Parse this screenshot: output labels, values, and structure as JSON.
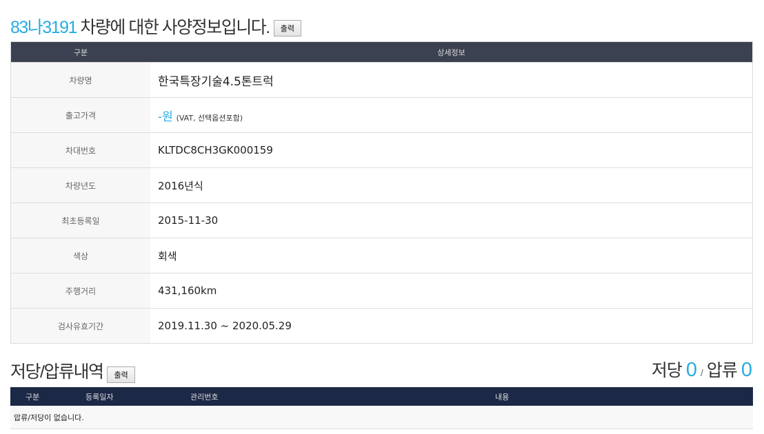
{
  "header": {
    "plate": "83나3191",
    "title_rest": " 차량에 대한 사양정보입니다.",
    "print_label": "출력"
  },
  "spec_table": {
    "columns": [
      "구분",
      "상세정보"
    ],
    "rows": [
      {
        "label": "차량명",
        "value": "한국특장기술4.5톤트럭"
      },
      {
        "label": "출고가격",
        "value": "-원",
        "note": "(VAT, 선택옵션포함)"
      },
      {
        "label": "차대번호",
        "value": "KLTDC8CH3GK000159"
      },
      {
        "label": "차량년도",
        "value": "2016년식"
      },
      {
        "label": "최초등록일",
        "value": "2015-11-30"
      },
      {
        "label": "색상",
        "value": "회색"
      },
      {
        "label": "주행거리",
        "value": "431,160km"
      },
      {
        "label": "검사유효기간",
        "value": "2019.11.30 ~ 2020.05.29"
      }
    ]
  },
  "lien": {
    "title": "저당/압류내역",
    "print_label": "출력",
    "mortgage_label": "저당",
    "mortgage_count": "0",
    "separator": "/",
    "seizure_label": "압류",
    "seizure_count": "0",
    "columns": [
      "구분",
      "등록일자",
      "관리번호",
      "내용"
    ],
    "empty_message": "압류/저당이 없습니다."
  },
  "colors": {
    "accent": "#29abe2",
    "spec_header": "#3b4150",
    "lien_header": "#1b2846"
  }
}
